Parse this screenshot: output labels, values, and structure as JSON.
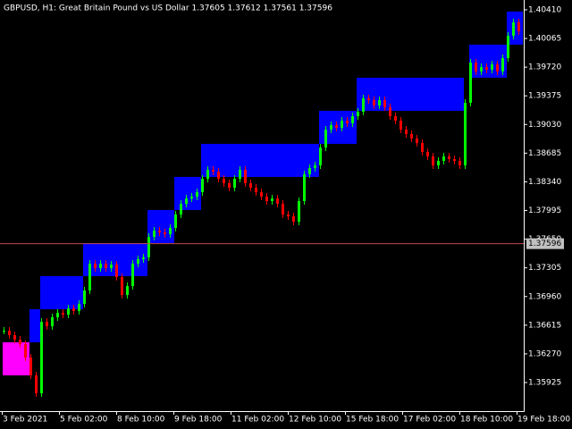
{
  "chart_data": {
    "type": "candlestick",
    "title": "GBPUSD, H1:  Great Britain Pound vs US Dollar  1.37605 1.37612 1.37561 1.37596",
    "x_labels": [
      "3 Feb 2021",
      "5 Feb 02:00",
      "8 Feb 10:00",
      "9 Feb 18:00",
      "11 Feb 02:00",
      "12 Feb 10:00",
      "15 Feb 18:00",
      "17 Feb 02:00",
      "18 Feb 10:00",
      "19 Feb 18:00"
    ],
    "closes": [
      1.36549,
      1.36495,
      1.36441,
      1.36387,
      1.36226,
      1.36011,
      1.35796,
      1.36656,
      1.36602,
      1.3671,
      1.36764,
      1.36742,
      1.36818,
      1.36785,
      1.36871,
      1.37033,
      1.37355,
      1.37301,
      1.37355,
      1.37301,
      1.37345,
      1.37194,
      1.36979,
      1.37086,
      1.37355,
      1.37409,
      1.37431,
      1.37678,
      1.37753,
      1.37732,
      1.3771,
      1.37785,
      1.37947,
      1.38076,
      1.3814,
      1.38162,
      1.38216,
      1.38377,
      1.38485,
      1.38463,
      1.38377,
      1.38323,
      1.38269,
      1.38377,
      1.38485,
      1.38323,
      1.38269,
      1.38216,
      1.38162,
      1.38108,
      1.3814,
      1.38076,
      1.37947,
      1.37925,
      1.37861,
      1.38108,
      1.38431,
      1.38506,
      1.38538,
      1.38753,
      1.38969,
      1.39022,
      1.3899,
      1.39076,
      1.39044,
      1.3913,
      1.39184,
      1.39345,
      1.39323,
      1.39259,
      1.39323,
      1.39237,
      1.3913,
      1.39076,
      1.38969,
      1.38915,
      1.38861,
      1.38807,
      1.387,
      1.38646,
      1.38538,
      1.38592,
      1.38646,
      1.38614,
      1.38592,
      1.38538,
      1.39291,
      1.39775,
      1.39668,
      1.39721,
      1.39689,
      1.39754,
      1.39668,
      1.39829,
      1.40098,
      1.40259,
      1.40152
    ],
    "up_color": "#00ff00",
    "down_color": "#ff0000",
    "boxes": [
      {
        "from": 0,
        "to": 5,
        "high": 1.36409,
        "low": 1.36011,
        "color": "#ff00ff"
      },
      {
        "from": 5,
        "to": 7,
        "high": 1.36807,
        "low": 1.36409,
        "color": "#0000ff"
      },
      {
        "from": 7,
        "to": 15,
        "high": 1.37205,
        "low": 1.36807,
        "color": "#0000ff"
      },
      {
        "from": 15,
        "to": 27,
        "high": 1.37603,
        "low": 1.37205,
        "color": "#0000ff"
      },
      {
        "from": 27,
        "to": 32,
        "high": 1.38001,
        "low": 1.37603,
        "color": "#0000ff"
      },
      {
        "from": 32,
        "to": 37,
        "high": 1.38399,
        "low": 1.38001,
        "color": "#0000ff"
      },
      {
        "from": 37,
        "to": 59,
        "high": 1.38797,
        "low": 1.38399,
        "color": "#0000ff"
      },
      {
        "from": 59,
        "to": 66,
        "high": 1.39195,
        "low": 1.38797,
        "color": "#0000ff"
      },
      {
        "from": 66,
        "to": 86,
        "high": 1.39593,
        "low": 1.39195,
        "color": "#0000ff"
      },
      {
        "from": 87,
        "to": 94,
        "high": 1.39991,
        "low": 1.39593,
        "color": "#0000ff"
      },
      {
        "from": 94,
        "to": 97,
        "high": 1.40389,
        "low": 1.39991,
        "color": "#0000ff"
      }
    ],
    "current_price": {
      "value": 1.37596,
      "label": "1.37596"
    },
    "price_line_color": "#c04848",
    "ylim": [
      1.35581,
      1.40528
    ],
    "yticks": [
      {
        "value": 1.4041,
        "label": "1.40410"
      },
      {
        "value": 1.40065,
        "label": "1.40065"
      },
      {
        "value": 1.3972,
        "label": "1.39720"
      },
      {
        "value": 1.39375,
        "label": "1.39375"
      },
      {
        "value": 1.3903,
        "label": "1.39030"
      },
      {
        "value": 1.38685,
        "label": "1.38685"
      },
      {
        "value": 1.3834,
        "label": "1.38340"
      },
      {
        "value": 1.37995,
        "label": "1.37995"
      },
      {
        "value": 1.3765,
        "label": "1.37650"
      },
      {
        "value": 1.37305,
        "label": "1.37305"
      },
      {
        "value": 1.3696,
        "label": "1.36960"
      },
      {
        "value": 1.36615,
        "label": "1.36615"
      },
      {
        "value": 1.3627,
        "label": "1.36270"
      },
      {
        "value": 1.35925,
        "label": "1.35925"
      }
    ]
  }
}
